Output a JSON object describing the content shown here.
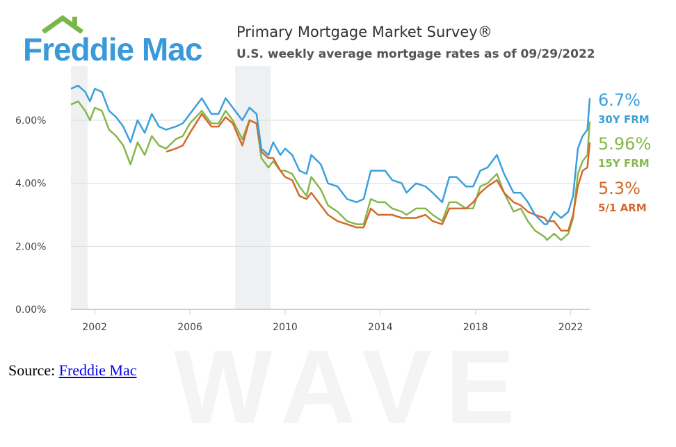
{
  "header": {
    "logo_text": "Freddie Mac",
    "logo_color": "#3a9ad9",
    "roof_color": "#7ab648",
    "title": "Primary Mortgage Market Survey®",
    "subtitle": "U.S. weekly average mortgage rates as of 09/29/2022"
  },
  "source": {
    "prefix": "Source: ",
    "link_text": "Freddie Mac"
  },
  "chart_data": {
    "type": "line",
    "title": "Primary Mortgage Market Survey®",
    "subtitle": "U.S. weekly average mortgage rates as of 09/29/2022",
    "xlabel": "",
    "ylabel": "",
    "xlim": [
      2001.0,
      2022.8
    ],
    "ylim": [
      0,
      7.5
    ],
    "x_ticks": [
      "2002",
      "2006",
      "2010",
      "2014",
      "2018",
      "2022"
    ],
    "y_ticks": [
      "0.00%",
      "2.00%",
      "4.00%",
      "6.00%"
    ],
    "grid": true,
    "recession_bands": [
      [
        2001.0,
        2001.7
      ],
      [
        2007.9,
        2009.4
      ]
    ],
    "series": [
      {
        "name": "30Y FRM",
        "color": "#3b9fdc",
        "end_value": "6.7%",
        "points": [
          [
            2001.0,
            7.0
          ],
          [
            2001.3,
            7.1
          ],
          [
            2001.6,
            6.9
          ],
          [
            2001.8,
            6.6
          ],
          [
            2002.0,
            7.0
          ],
          [
            2002.3,
            6.9
          ],
          [
            2002.6,
            6.3
          ],
          [
            2002.9,
            6.1
          ],
          [
            2003.2,
            5.8
          ],
          [
            2003.5,
            5.3
          ],
          [
            2003.8,
            6.0
          ],
          [
            2004.1,
            5.6
          ],
          [
            2004.4,
            6.2
          ],
          [
            2004.7,
            5.8
          ],
          [
            2005.0,
            5.7
          ],
          [
            2005.4,
            5.8
          ],
          [
            2005.7,
            5.9
          ],
          [
            2006.0,
            6.2
          ],
          [
            2006.5,
            6.7
          ],
          [
            2006.9,
            6.2
          ],
          [
            2007.2,
            6.2
          ],
          [
            2007.5,
            6.7
          ],
          [
            2007.8,
            6.4
          ],
          [
            2008.2,
            6.0
          ],
          [
            2008.5,
            6.4
          ],
          [
            2008.8,
            6.2
          ],
          [
            2009.0,
            5.1
          ],
          [
            2009.3,
            4.9
          ],
          [
            2009.5,
            5.3
          ],
          [
            2009.8,
            4.9
          ],
          [
            2010.0,
            5.1
          ],
          [
            2010.3,
            4.9
          ],
          [
            2010.6,
            4.4
          ],
          [
            2010.9,
            4.3
          ],
          [
            2011.1,
            4.9
          ],
          [
            2011.5,
            4.6
          ],
          [
            2011.8,
            4.0
          ],
          [
            2012.2,
            3.9
          ],
          [
            2012.6,
            3.5
          ],
          [
            2013.0,
            3.4
          ],
          [
            2013.3,
            3.5
          ],
          [
            2013.6,
            4.4
          ],
          [
            2013.9,
            4.4
          ],
          [
            2014.2,
            4.4
          ],
          [
            2014.5,
            4.1
          ],
          [
            2014.9,
            4.0
          ],
          [
            2015.1,
            3.7
          ],
          [
            2015.5,
            4.0
          ],
          [
            2015.9,
            3.9
          ],
          [
            2016.2,
            3.7
          ],
          [
            2016.6,
            3.4
          ],
          [
            2016.9,
            4.2
          ],
          [
            2017.2,
            4.2
          ],
          [
            2017.6,
            3.9
          ],
          [
            2017.9,
            3.9
          ],
          [
            2018.2,
            4.4
          ],
          [
            2018.5,
            4.5
          ],
          [
            2018.9,
            4.9
          ],
          [
            2019.2,
            4.3
          ],
          [
            2019.6,
            3.7
          ],
          [
            2019.9,
            3.7
          ],
          [
            2020.2,
            3.4
          ],
          [
            2020.5,
            3.0
          ],
          [
            2020.9,
            2.7
          ],
          [
            2021.0,
            2.7
          ],
          [
            2021.3,
            3.1
          ],
          [
            2021.6,
            2.9
          ],
          [
            2021.9,
            3.1
          ],
          [
            2022.1,
            3.6
          ],
          [
            2022.3,
            5.1
          ],
          [
            2022.5,
            5.5
          ],
          [
            2022.7,
            5.7
          ],
          [
            2022.8,
            6.7
          ]
        ]
      },
      {
        "name": "15Y FRM",
        "color": "#85b74d",
        "end_value": "5.96%",
        "points": [
          [
            2001.0,
            6.5
          ],
          [
            2001.3,
            6.6
          ],
          [
            2001.6,
            6.3
          ],
          [
            2001.8,
            6.0
          ],
          [
            2002.0,
            6.4
          ],
          [
            2002.3,
            6.3
          ],
          [
            2002.6,
            5.7
          ],
          [
            2002.9,
            5.5
          ],
          [
            2003.2,
            5.2
          ],
          [
            2003.5,
            4.6
          ],
          [
            2003.8,
            5.3
          ],
          [
            2004.1,
            4.9
          ],
          [
            2004.4,
            5.5
          ],
          [
            2004.7,
            5.2
          ],
          [
            2005.0,
            5.1
          ],
          [
            2005.4,
            5.4
          ],
          [
            2005.7,
            5.5
          ],
          [
            2006.0,
            5.9
          ],
          [
            2006.5,
            6.3
          ],
          [
            2006.9,
            5.9
          ],
          [
            2007.2,
            5.9
          ],
          [
            2007.5,
            6.3
          ],
          [
            2007.8,
            6.0
          ],
          [
            2008.2,
            5.4
          ],
          [
            2008.5,
            6.0
          ],
          [
            2008.8,
            5.9
          ],
          [
            2009.0,
            4.8
          ],
          [
            2009.3,
            4.5
          ],
          [
            2009.5,
            4.7
          ],
          [
            2009.8,
            4.4
          ],
          [
            2010.0,
            4.4
          ],
          [
            2010.3,
            4.3
          ],
          [
            2010.6,
            3.9
          ],
          [
            2010.9,
            3.6
          ],
          [
            2011.1,
            4.2
          ],
          [
            2011.5,
            3.8
          ],
          [
            2011.8,
            3.3
          ],
          [
            2012.2,
            3.1
          ],
          [
            2012.6,
            2.8
          ],
          [
            2013.0,
            2.7
          ],
          [
            2013.3,
            2.7
          ],
          [
            2013.6,
            3.5
          ],
          [
            2013.9,
            3.4
          ],
          [
            2014.2,
            3.4
          ],
          [
            2014.5,
            3.2
          ],
          [
            2014.9,
            3.1
          ],
          [
            2015.1,
            3.0
          ],
          [
            2015.5,
            3.2
          ],
          [
            2015.9,
            3.2
          ],
          [
            2016.2,
            3.0
          ],
          [
            2016.6,
            2.8
          ],
          [
            2016.9,
            3.4
          ],
          [
            2017.2,
            3.4
          ],
          [
            2017.6,
            3.2
          ],
          [
            2017.9,
            3.2
          ],
          [
            2018.2,
            3.9
          ],
          [
            2018.5,
            4.0
          ],
          [
            2018.9,
            4.3
          ],
          [
            2019.2,
            3.7
          ],
          [
            2019.6,
            3.1
          ],
          [
            2019.9,
            3.2
          ],
          [
            2020.2,
            2.8
          ],
          [
            2020.5,
            2.5
          ],
          [
            2020.9,
            2.3
          ],
          [
            2021.0,
            2.2
          ],
          [
            2021.3,
            2.4
          ],
          [
            2021.6,
            2.2
          ],
          [
            2021.9,
            2.4
          ],
          [
            2022.1,
            2.9
          ],
          [
            2022.3,
            4.3
          ],
          [
            2022.5,
            4.7
          ],
          [
            2022.7,
            4.9
          ],
          [
            2022.8,
            5.96
          ]
        ]
      },
      {
        "name": "5/1 ARM",
        "color": "#d4692b",
        "end_value": "5.3%",
        "points": [
          [
            2005.0,
            5.0
          ],
          [
            2005.4,
            5.1
          ],
          [
            2005.7,
            5.2
          ],
          [
            2006.0,
            5.6
          ],
          [
            2006.5,
            6.2
          ],
          [
            2006.9,
            5.8
          ],
          [
            2007.2,
            5.8
          ],
          [
            2007.5,
            6.1
          ],
          [
            2007.8,
            5.9
          ],
          [
            2008.2,
            5.2
          ],
          [
            2008.5,
            6.0
          ],
          [
            2008.8,
            5.9
          ],
          [
            2009.0,
            5.0
          ],
          [
            2009.3,
            4.8
          ],
          [
            2009.5,
            4.8
          ],
          [
            2009.8,
            4.4
          ],
          [
            2010.0,
            4.2
          ],
          [
            2010.3,
            4.1
          ],
          [
            2010.6,
            3.6
          ],
          [
            2010.9,
            3.5
          ],
          [
            2011.1,
            3.7
          ],
          [
            2011.5,
            3.3
          ],
          [
            2011.8,
            3.0
          ],
          [
            2012.2,
            2.8
          ],
          [
            2012.6,
            2.7
          ],
          [
            2013.0,
            2.6
          ],
          [
            2013.3,
            2.6
          ],
          [
            2013.6,
            3.2
          ],
          [
            2013.9,
            3.0
          ],
          [
            2014.2,
            3.0
          ],
          [
            2014.5,
            3.0
          ],
          [
            2014.9,
            2.9
          ],
          [
            2015.1,
            2.9
          ],
          [
            2015.5,
            2.9
          ],
          [
            2015.9,
            3.0
          ],
          [
            2016.2,
            2.8
          ],
          [
            2016.6,
            2.7
          ],
          [
            2016.9,
            3.2
          ],
          [
            2017.2,
            3.2
          ],
          [
            2017.6,
            3.2
          ],
          [
            2017.9,
            3.4
          ],
          [
            2018.2,
            3.7
          ],
          [
            2018.5,
            3.9
          ],
          [
            2018.9,
            4.1
          ],
          [
            2019.2,
            3.7
          ],
          [
            2019.6,
            3.4
          ],
          [
            2019.9,
            3.3
          ],
          [
            2020.2,
            3.1
          ],
          [
            2020.5,
            3.0
          ],
          [
            2020.9,
            2.9
          ],
          [
            2021.0,
            2.8
          ],
          [
            2021.3,
            2.8
          ],
          [
            2021.6,
            2.5
          ],
          [
            2021.9,
            2.5
          ],
          [
            2022.1,
            3.0
          ],
          [
            2022.3,
            3.9
          ],
          [
            2022.5,
            4.4
          ],
          [
            2022.7,
            4.5
          ],
          [
            2022.8,
            5.3
          ]
        ]
      }
    ]
  }
}
